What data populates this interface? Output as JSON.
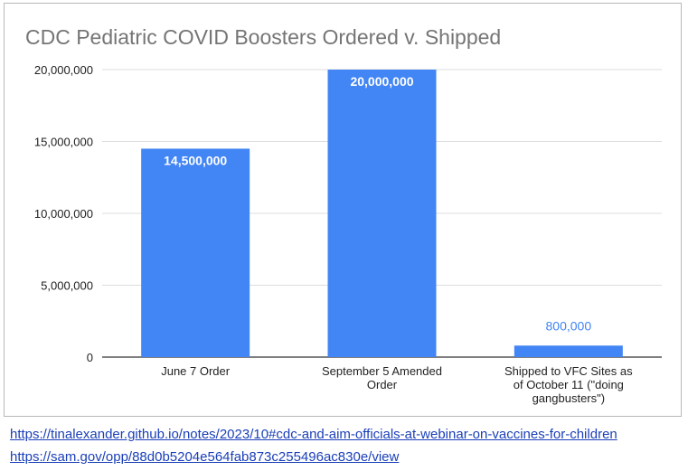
{
  "chart_data": {
    "type": "bar",
    "title": "CDC Pediatric COVID Boosters Ordered v. Shipped",
    "categories": [
      [
        "June 7 Order"
      ],
      [
        "September 5 Amended",
        "Order"
      ],
      [
        "Shipped to VFC Sites as",
        "of October 11 (\"doing",
        "gangbusters\")"
      ]
    ],
    "values": [
      14500000,
      20000000,
      800000
    ],
    "data_labels": [
      "14,500,000",
      "20,000,000",
      "800,000"
    ],
    "yticks": [
      0,
      5000000,
      10000000,
      15000000,
      20000000
    ],
    "ytick_labels": [
      "0",
      "5,000,000",
      "10,000,000",
      "15,000,000",
      "20,000,000"
    ],
    "ylim": [
      0,
      20000000
    ],
    "grid": true,
    "legend": "none",
    "bar_color": "#4285f4",
    "xlabel": "",
    "ylabel": ""
  },
  "links": [
    "https://tinalexander.github.io/notes/2023/10#cdc-and-aim-officials-at-webinar-on-vaccines-for-children",
    "https://sam.gov/opp/88d0b5204e564fab873c255496ac830e/view"
  ]
}
